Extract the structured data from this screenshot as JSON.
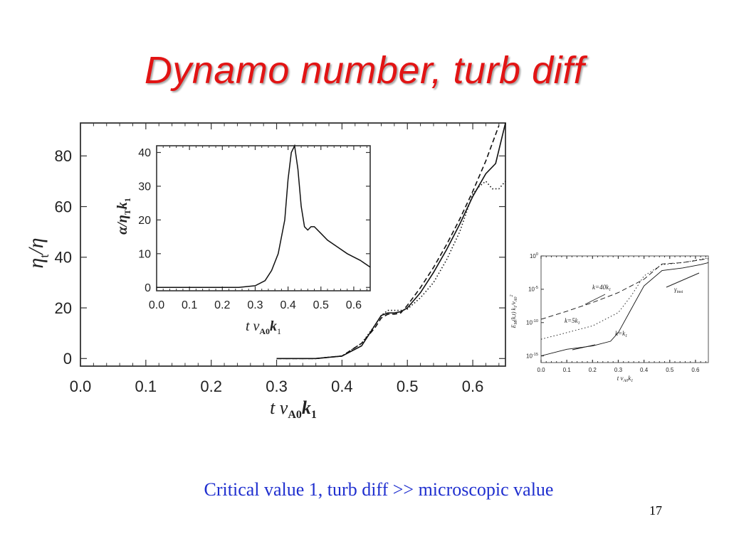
{
  "slide": {
    "title": "Dynamo number, turb diff",
    "caption": "Critical value 1, turb diff  >> microscopic value",
    "page_number": "17"
  },
  "chart_data": [
    {
      "type": "line",
      "xlabel": "t  v_A0 k_1",
      "ylabel": "η_t/η",
      "xlim": [
        0.0,
        0.65
      ],
      "ylim": [
        -3,
        93
      ],
      "xticks": [
        "0.0",
        "0.1",
        "0.2",
        "0.3",
        "0.4",
        "0.5",
        "0.6"
      ],
      "yticks": [
        "0",
        "20",
        "40",
        "60",
        "80"
      ],
      "series": [
        {
          "style": "solid",
          "x": [
            0.3,
            0.36,
            0.4,
            0.43,
            0.44,
            0.45,
            0.46,
            0.47,
            0.48,
            0.49,
            0.5,
            0.52,
            0.54,
            0.56,
            0.58,
            0.6,
            0.62,
            0.635,
            0.65
          ],
          "y": [
            0,
            0,
            1,
            5,
            9,
            13,
            17,
            18,
            18,
            18.5,
            20,
            26,
            34,
            43,
            53,
            64,
            73,
            77,
            93
          ]
        },
        {
          "style": "dashed",
          "x": [
            0.3,
            0.36,
            0.4,
            0.43,
            0.45,
            0.46,
            0.47,
            0.48,
            0.49,
            0.5,
            0.52,
            0.54,
            0.56,
            0.58,
            0.6,
            0.62,
            0.64
          ],
          "y": [
            0,
            0,
            1,
            6,
            12,
            16,
            17.5,
            17.5,
            18,
            21,
            28,
            36,
            45,
            55,
            66,
            78,
            92
          ]
        },
        {
          "style": "dotted",
          "x": [
            0.3,
            0.36,
            0.4,
            0.43,
            0.45,
            0.46,
            0.47,
            0.48,
            0.49,
            0.5,
            0.52,
            0.54,
            0.56,
            0.58,
            0.6,
            0.61,
            0.62,
            0.63,
            0.64,
            0.65
          ],
          "y": [
            0,
            0,
            1,
            6,
            13,
            17,
            19,
            19,
            19,
            19.5,
            24,
            30,
            39,
            50,
            65,
            68,
            70,
            67,
            67,
            70
          ]
        }
      ]
    },
    {
      "type": "line",
      "xlabel": "t  v_A0 k_1",
      "ylabel": "α/η_T k_1",
      "xlim": [
        0.0,
        0.65
      ],
      "ylim": [
        -1,
        42
      ],
      "xticks": [
        "0.0",
        "0.1",
        "0.2",
        "0.3",
        "0.4",
        "0.5",
        "0.6"
      ],
      "yticks": [
        "0",
        "10",
        "20",
        "30",
        "40"
      ],
      "series": [
        {
          "style": "solid",
          "x": [
            0.0,
            0.25,
            0.3,
            0.33,
            0.35,
            0.37,
            0.39,
            0.4,
            0.41,
            0.42,
            0.43,
            0.44,
            0.45,
            0.46,
            0.47,
            0.48,
            0.5,
            0.52,
            0.55,
            0.58,
            0.6,
            0.62,
            0.65
          ],
          "y": [
            0,
            0,
            0.5,
            2,
            5,
            10,
            20,
            32,
            40,
            42,
            35,
            24,
            18,
            17,
            18,
            18,
            16,
            14,
            12,
            10,
            9,
            8,
            6
          ]
        }
      ]
    },
    {
      "type": "line",
      "xlabel": "t  v_A0 k_1",
      "ylabel": "E_M(k,t) k_1/v_A0^2",
      "y_scale": "log",
      "xlim": [
        0.0,
        0.65
      ],
      "ylim": [
        -16,
        0
      ],
      "xticks": [
        "0.0",
        "0.1",
        "0.2",
        "0.3",
        "0.4",
        "0.5",
        "0.6"
      ],
      "ytick_exponents": [
        "0",
        "-5",
        "-10",
        "-15"
      ],
      "annotations": [
        "k=40k_1",
        "k=5k_1",
        "k=k_1",
        "γ_inst"
      ],
      "series": [
        {
          "style": "dashed",
          "label": "k=40k_1",
          "x": [
            0.0,
            0.1,
            0.2,
            0.3,
            0.4,
            0.47,
            0.55,
            0.65
          ],
          "y": [
            -9.5,
            -8.3,
            -7.0,
            -5.5,
            -3.5,
            -1.2,
            -1.0,
            -0.4
          ]
        },
        {
          "style": "dotted",
          "label": "k=5k_1",
          "x": [
            0.0,
            0.1,
            0.2,
            0.3,
            0.35,
            0.4,
            0.47,
            0.55,
            0.65
          ],
          "y": [
            -12.5,
            -11.5,
            -10.5,
            -8.5,
            -6,
            -3,
            -1.3,
            -1.0,
            -0.3
          ]
        },
        {
          "style": "solid",
          "label": "k=k_1",
          "x": [
            0.0,
            0.1,
            0.2,
            0.27,
            0.3,
            0.35,
            0.4,
            0.47,
            0.55,
            0.62,
            0.65
          ],
          "y": [
            -15.0,
            -14.0,
            -13.5,
            -12.8,
            -11.5,
            -8,
            -4.5,
            -2.2,
            -1.8,
            -1.3,
            -1.0
          ]
        }
      ]
    }
  ]
}
